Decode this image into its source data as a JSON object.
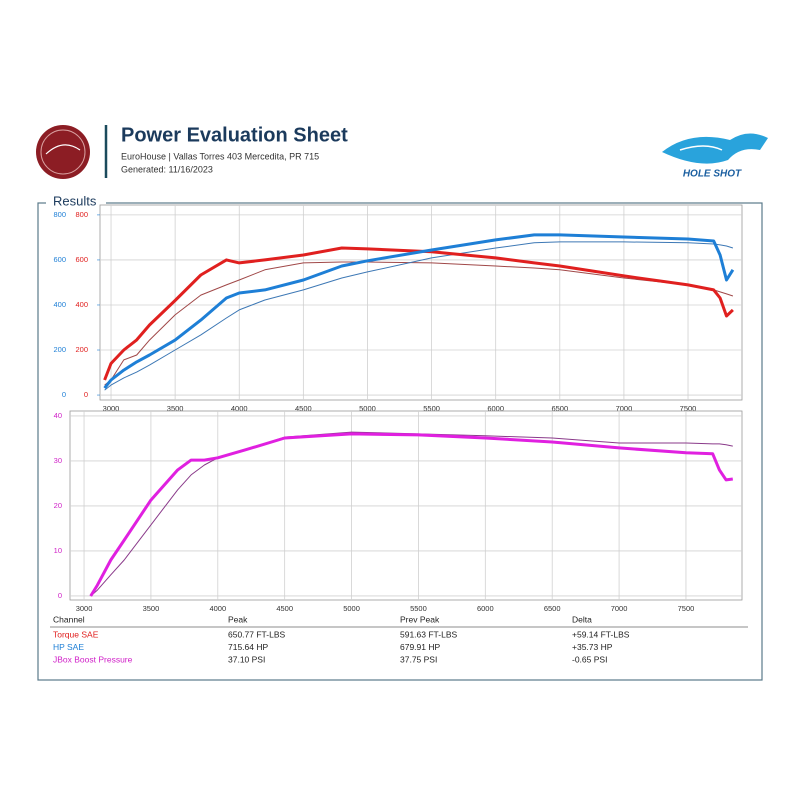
{
  "header": {
    "title": "Power Evaluation Sheet",
    "subtitle": "EuroHouse | Vallas Torres 403 Mercedita, PR 715",
    "generated": "Generated: 11/16/2023",
    "brand": "HOLE SHOT"
  },
  "section_title": "Results",
  "chart_data": [
    {
      "type": "line",
      "xlim": [
        2914,
        7921
      ],
      "xticks": [
        3000,
        3500,
        4000,
        4500,
        5000,
        5500,
        6000,
        6500,
        7000,
        7500
      ],
      "ylim": [
        -22,
        844
      ],
      "yticks": [
        0,
        200,
        400,
        600,
        800
      ],
      "ytick_color": "#e0201f",
      "y2lim": [
        -22,
        844
      ],
      "y2ticks": [
        0,
        200,
        400,
        600,
        800
      ],
      "y2tick_color": "#1e7fd6",
      "grid": true,
      "x": [
        2950,
        3000,
        3100,
        3200,
        3300,
        3500,
        3700,
        3900,
        4000,
        4200,
        4500,
        4800,
        5000,
        5500,
        6000,
        6300,
        6500,
        7000,
        7500,
        7700,
        7750,
        7800,
        7850
      ],
      "series": [
        {
          "color": "#a04848",
          "width": 1,
          "values": [
            44,
            67,
            156,
            178,
            244,
            356,
            444,
            489,
            511,
            556,
            587,
            591,
            591,
            587,
            573,
            564,
            556,
            520,
            489,
            467,
            458,
            449,
            440
          ]
        },
        {
          "color": "#3d78b5",
          "width": 1,
          "axis": "y2",
          "values": [
            22,
            44,
            76,
            102,
            133,
            200,
            267,
            342,
            378,
            422,
            467,
            520,
            547,
            609,
            653,
            676,
            680,
            680,
            676,
            671,
            667,
            662,
            653
          ]
        },
        {
          "color": "#e0201f",
          "width": 3,
          "values": [
            67,
            140,
            200,
            245,
            311,
            420,
            533,
            600,
            587,
            600,
            622,
            653,
            649,
            636,
            609,
            587,
            573,
            529,
            489,
            467,
            431,
            351,
            378
          ]
        },
        {
          "color": "#1e7fd6",
          "width": 3,
          "axis": "y2",
          "values": [
            31,
            67,
            111,
            147,
            178,
            244,
            333,
            431,
            453,
            467,
            511,
            573,
            596,
            644,
            689,
            711,
            711,
            702,
            693,
            684,
            622,
            511,
            556
          ]
        }
      ]
    },
    {
      "type": "line",
      "xlim": [
        2895,
        7919
      ],
      "xticks": [
        3000,
        3500,
        4000,
        4500,
        5000,
        5500,
        6000,
        6500,
        7000,
        7500
      ],
      "ylim": [
        -0.9,
        41.1
      ],
      "yticks": [
        0,
        10,
        20,
        30,
        40
      ],
      "ytick_color": "#d020c8",
      "grid": true,
      "x": [
        3050,
        3100,
        3200,
        3300,
        3500,
        3700,
        3800,
        3900,
        4000,
        4200,
        4500,
        5000,
        5500,
        6000,
        6500,
        7000,
        7500,
        7700,
        7750,
        7800,
        7850
      ],
      "series": [
        {
          "color": "#8a3a8a",
          "width": 1,
          "values": [
            0,
            1.3,
            4.7,
            8,
            15.8,
            23.6,
            26.9,
            29.1,
            30.7,
            32.4,
            35.3,
            36.4,
            36,
            35.6,
            35.1,
            34,
            34,
            33.8,
            33.8,
            33.6,
            33.3
          ]
        },
        {
          "color": "#e020e0",
          "width": 3,
          "values": [
            0,
            2.4,
            8,
            12.4,
            21.3,
            28,
            30.2,
            30.2,
            30.7,
            32.4,
            35.1,
            36,
            35.8,
            35.1,
            34.2,
            32.9,
            31.8,
            31.6,
            28,
            25.8,
            26
          ]
        }
      ]
    }
  ],
  "table": {
    "columns": [
      "Channel",
      "Peak",
      "Prev Peak",
      "Delta"
    ],
    "row_colors": [
      "#e0201f",
      "#1e7fd6",
      "#d020c8"
    ],
    "rows": [
      [
        "Torque SAE",
        "650.77 FT-LBS",
        "591.63 FT-LBS",
        "+59.14 FT-LBS"
      ],
      [
        "HP SAE",
        "715.64 HP",
        "679.91 HP",
        "+35.73 HP"
      ],
      [
        "JBox Boost Pressure",
        "37.10 PSI",
        "37.75 PSI",
        "-0.65 PSI"
      ]
    ]
  }
}
